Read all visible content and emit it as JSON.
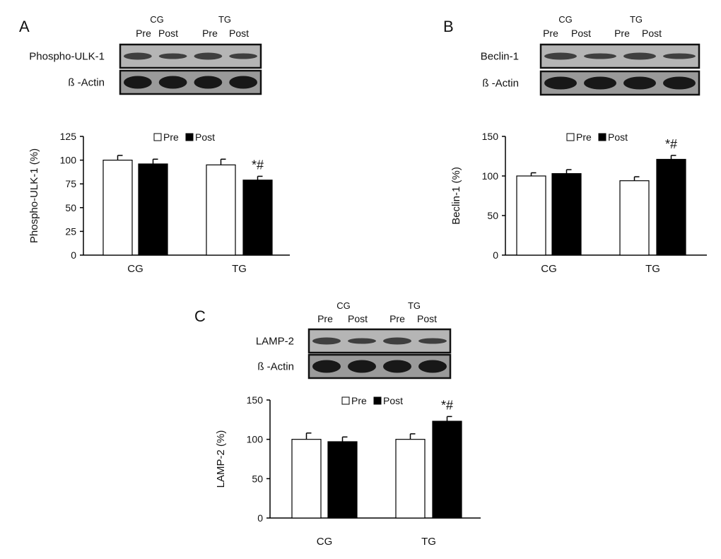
{
  "chart_data": [
    {
      "type": "bar",
      "panel_label": "A",
      "blot": {
        "groups": [
          "CG",
          "TG"
        ],
        "lanes": [
          "Pre",
          "Post",
          "Pre",
          "Post"
        ],
        "rows": [
          "Phospho-ULK-1",
          "ß -Actin"
        ]
      },
      "categories": [
        "CG",
        "TG"
      ],
      "legend": [
        "Pre",
        "Post"
      ],
      "legend_placement": "top-center",
      "ylabel": "Phospho-ULK-1 (%)",
      "ylim": [
        0,
        125
      ],
      "yticks": [
        0,
        25,
        50,
        75,
        100,
        125
      ],
      "series": [
        {
          "name": "Pre",
          "color": "#ffffff",
          "values": [
            100,
            95
          ],
          "errors": [
            5,
            6
          ]
        },
        {
          "name": "Post",
          "color": "#000000",
          "values": [
            96,
            79
          ],
          "errors": [
            5,
            4
          ]
        }
      ],
      "annotations": [
        {
          "category": "TG",
          "series": "Post",
          "text": "*#"
        }
      ]
    },
    {
      "type": "bar",
      "panel_label": "B",
      "blot": {
        "groups": [
          "CG",
          "TG"
        ],
        "lanes": [
          "Pre",
          "Post",
          "Pre",
          "Post"
        ],
        "rows": [
          "Beclin-1",
          "ß -Actin"
        ]
      },
      "categories": [
        "CG",
        "TG"
      ],
      "legend": [
        "Pre",
        "Post"
      ],
      "legend_placement": "top-center",
      "ylabel": "Beclin-1 (%)",
      "ylim": [
        0,
        150
      ],
      "yticks": [
        0,
        50,
        100,
        150
      ],
      "series": [
        {
          "name": "Pre",
          "color": "#ffffff",
          "values": [
            100,
            94
          ],
          "errors": [
            4,
            5
          ]
        },
        {
          "name": "Post",
          "color": "#000000",
          "values": [
            103,
            121
          ],
          "errors": [
            5,
            5
          ]
        }
      ],
      "annotations": [
        {
          "category": "TG",
          "series": "Post",
          "text": "*#"
        }
      ]
    },
    {
      "type": "bar",
      "panel_label": "C",
      "blot": {
        "groups": [
          "CG",
          "TG"
        ],
        "lanes": [
          "Pre",
          "Post",
          "Pre",
          "Post"
        ],
        "rows": [
          "LAMP-2",
          "ß -Actin"
        ]
      },
      "categories": [
        "CG",
        "TG"
      ],
      "legend": [
        "Pre",
        "Post"
      ],
      "legend_placement": "top-center",
      "ylabel": "LAMP-2 (%)",
      "ylim": [
        0,
        150
      ],
      "yticks": [
        0,
        50,
        100,
        150
      ],
      "series": [
        {
          "name": "Pre",
          "color": "#ffffff",
          "values": [
            100,
            100
          ],
          "errors": [
            8,
            7
          ]
        },
        {
          "name": "Post",
          "color": "#000000",
          "values": [
            97,
            123
          ],
          "errors": [
            6,
            6
          ]
        }
      ],
      "annotations": [
        {
          "category": "TG",
          "series": "Post",
          "text": "*#"
        }
      ]
    }
  ]
}
